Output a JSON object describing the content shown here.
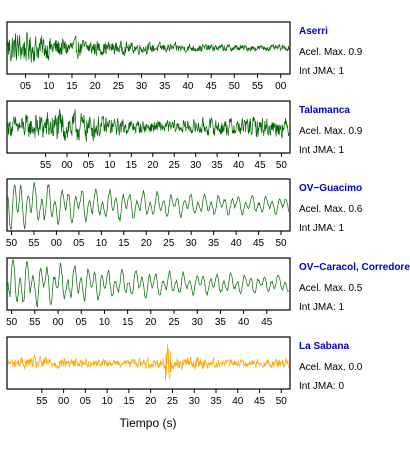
{
  "chart_data": {
    "type": "line",
    "xlabel": "Tiempo (s)",
    "series": [
      {
        "name": "Aserri",
        "accel_label": "Acel. Max. 0.9",
        "jma_label": "Int JMA: 1",
        "color": "#006400",
        "tick_labels": [
          "05",
          "10",
          "15",
          "20",
          "25",
          "30",
          "35",
          "40",
          "45",
          "50",
          "55",
          "00"
        ],
        "first_tick_sec": 5,
        "window_sec": [
          1,
          62
        ],
        "signal": "decay"
      },
      {
        "name": "Talamanca",
        "accel_label": "Acel. Max. 0.9",
        "jma_label": "Int JMA: 1",
        "color": "#006400",
        "tick_labels": [
          "55",
          "00",
          "05",
          "10",
          "15",
          "20",
          "25",
          "30",
          "35",
          "40",
          "45",
          "50"
        ],
        "first_tick_sec": 55,
        "window_sec": [
          46,
          112
        ],
        "signal": "noisy"
      },
      {
        "name": "OV−Guacimo",
        "accel_label": "Acel. Max. 0.6",
        "jma_label": "Int JMA: 1",
        "color": "#006400",
        "tick_labels": [
          "50",
          "55",
          "00",
          "05",
          "10",
          "15",
          "20",
          "25",
          "30",
          "35",
          "40",
          "45",
          "50"
        ],
        "first_tick_sec": 50,
        "window_sec": [
          49,
          112
        ],
        "signal": "wavy"
      },
      {
        "name": "OV−Caracol, Corredore",
        "accel_label": "Acel. Max. 0.5",
        "jma_label": "Int JMA: 1",
        "color": "#006400",
        "tick_labels": [
          "50",
          "55",
          "00",
          "05",
          "10",
          "15",
          "20",
          "25",
          "30",
          "35",
          "40",
          "45"
        ],
        "first_tick_sec": 50,
        "window_sec": [
          49,
          110
        ],
        "signal": "wavy"
      },
      {
        "name": "La Sabana",
        "accel_label": "Acel. Max. 0.0",
        "jma_label": "Int JMA: 0",
        "color": "#ffa500",
        "tick_labels": [
          "55",
          "00",
          "05",
          "10",
          "15",
          "20",
          "25",
          "30",
          "35",
          "40",
          "45",
          "50"
        ],
        "first_tick_sec": 55,
        "window_sec": [
          47,
          112
        ],
        "signal": "flat"
      }
    ]
  }
}
